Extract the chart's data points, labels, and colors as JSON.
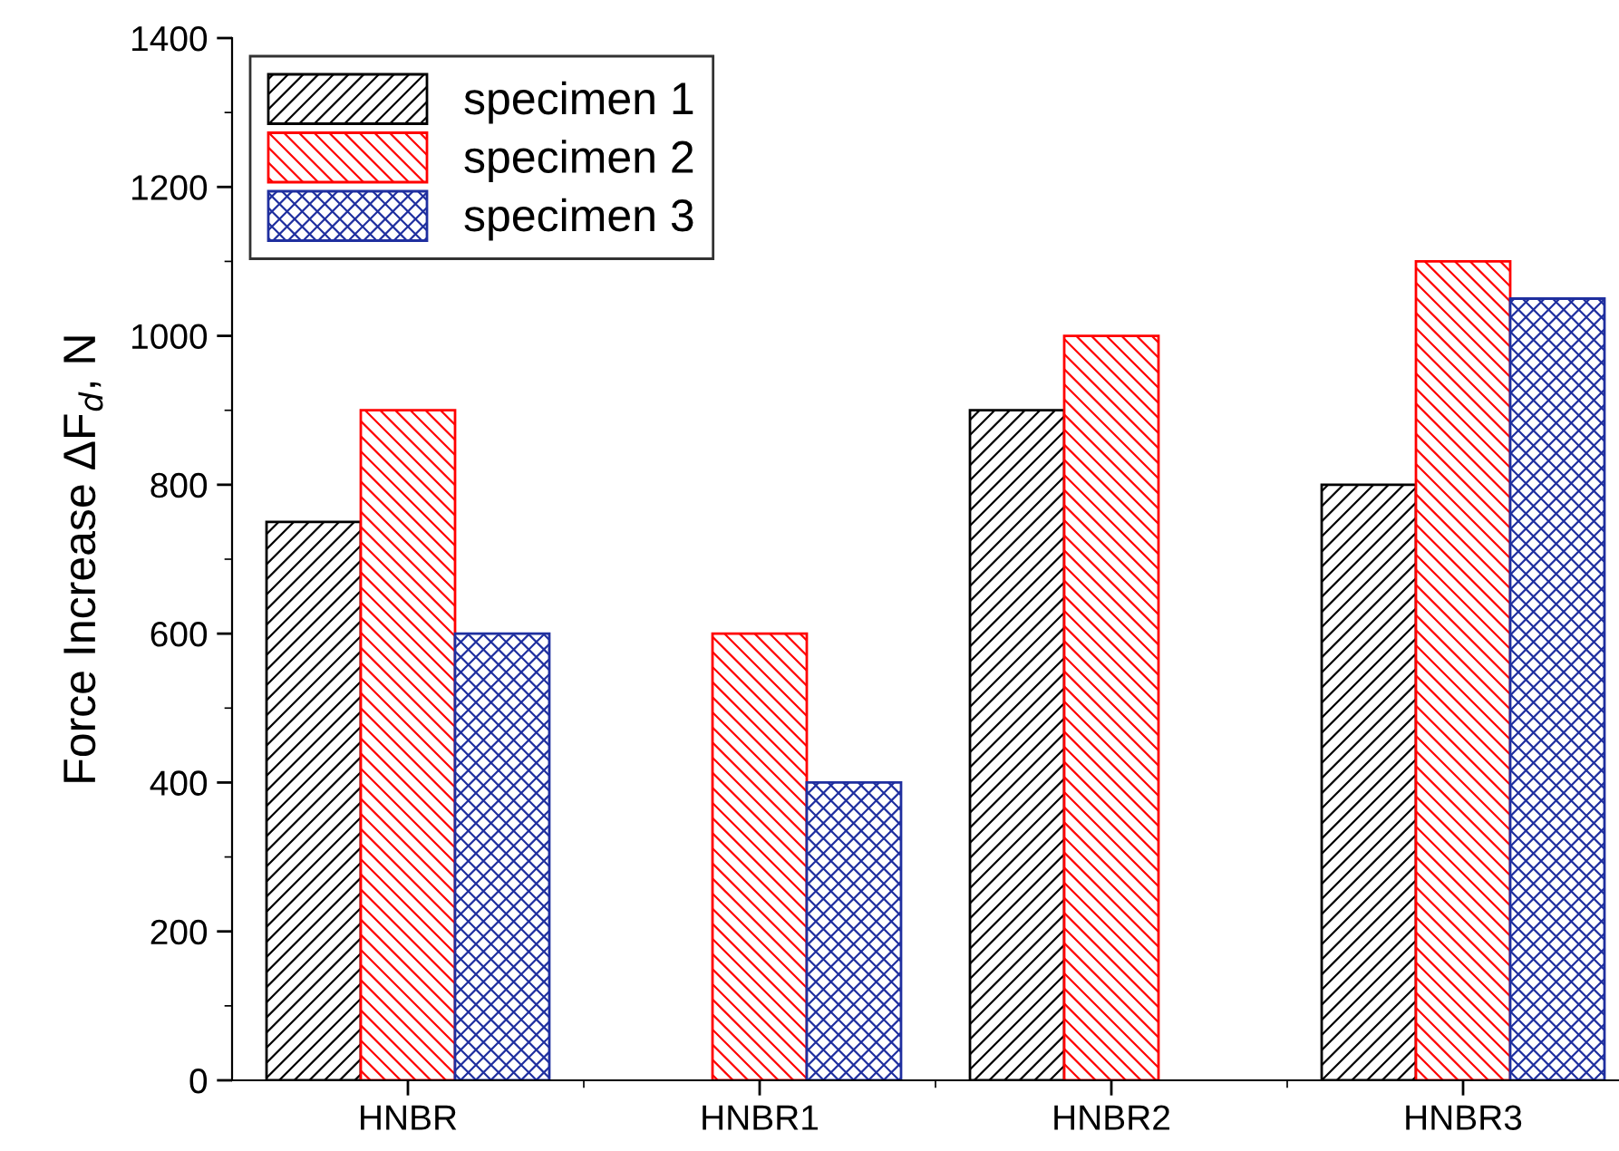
{
  "chart_data": {
    "type": "bar",
    "ylabel": "Force Increase ΔF$_{d}$, N",
    "categories": [
      "HNBR",
      "HNBR1",
      "HNBR2",
      "HNBR3"
    ],
    "series": [
      {
        "name": "specimen 1",
        "color": "#000000",
        "values": [
          750,
          null,
          900,
          800
        ]
      },
      {
        "name": "specimen 2",
        "color": "#ff0000",
        "values": [
          900,
          600,
          1000,
          1100
        ]
      },
      {
        "name": "specimen 3",
        "color": "#1f2f9f",
        "values": [
          600,
          400,
          null,
          1050
        ]
      }
    ],
    "ylim": [
      0,
      1400
    ],
    "yticks": [
      0,
      200,
      400,
      600,
      800,
      1000,
      1200,
      1400
    ],
    "grid": false,
    "legend": "top left"
  }
}
